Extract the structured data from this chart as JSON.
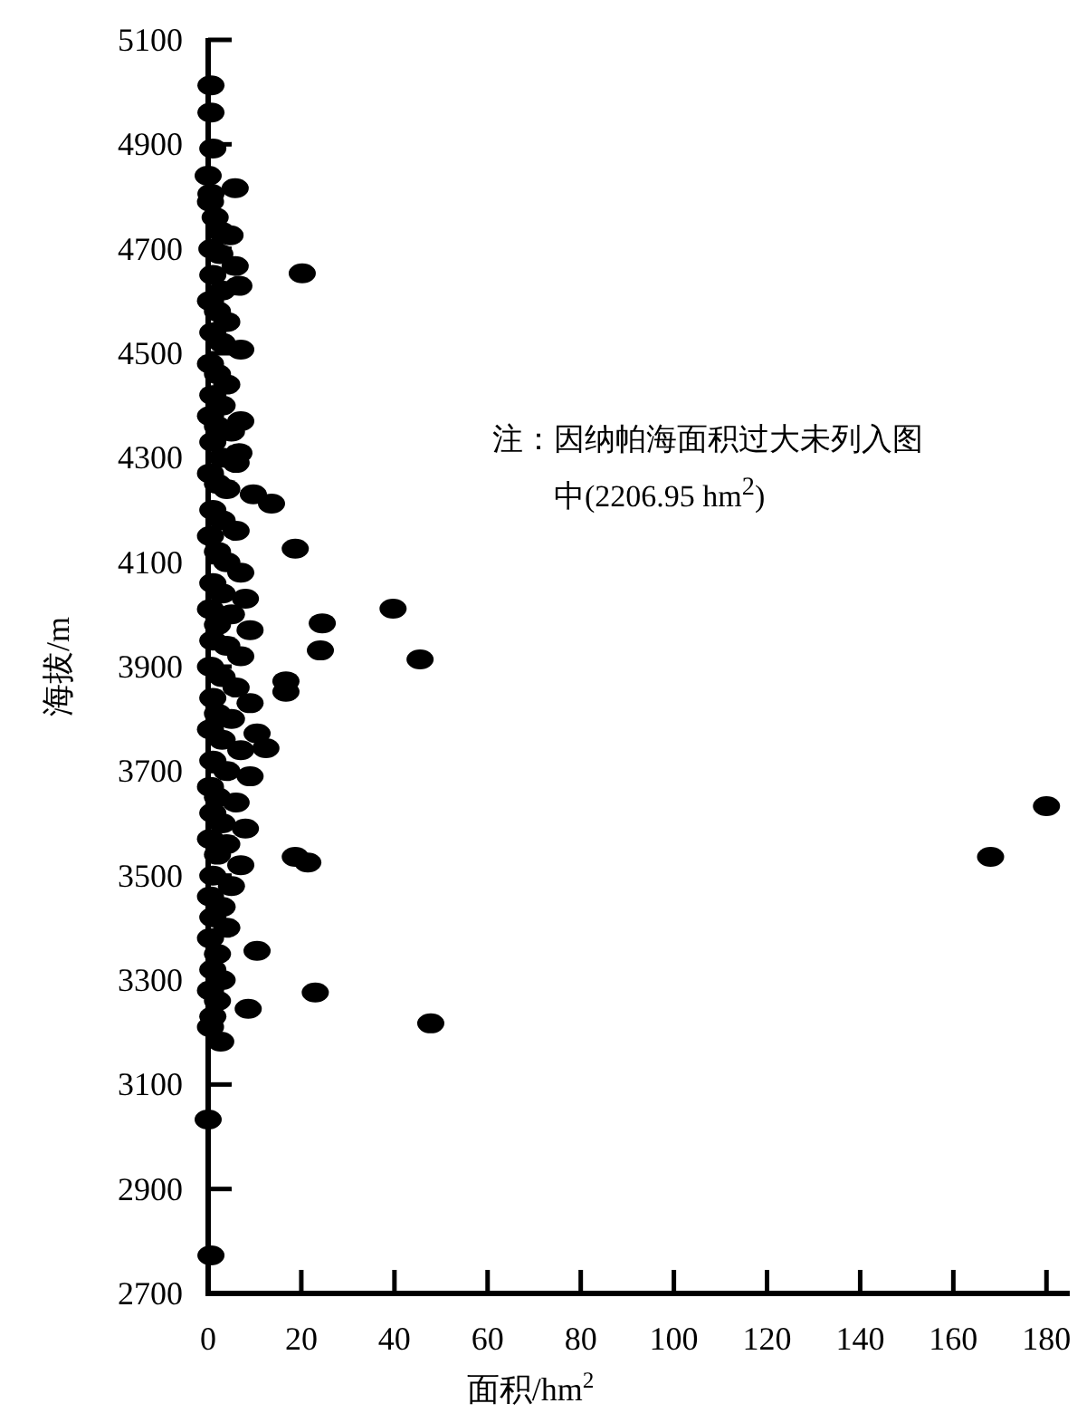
{
  "chart_data": {
    "type": "scatter",
    "xlabel": "面积/hm$^{2}$",
    "ylabel": "海拔/m",
    "annotations": [
      "注：因纳帕海面积过大未列入图中(2206.95 hm$^{2}$)"
    ],
    "xlim": [
      0,
      185
    ],
    "ylim": [
      2700,
      5100
    ],
    "xticks": [
      0,
      20,
      40,
      60,
      80,
      100,
      120,
      140,
      160,
      180
    ],
    "yticks": [
      2700,
      2900,
      3100,
      3300,
      3500,
      3700,
      3900,
      4100,
      4300,
      4500,
      4700,
      4900,
      5100
    ],
    "grid": false,
    "marker": "circle",
    "series": [
      {
        "color": "#000000",
        "x": [
          180,
          168,
          47.8,
          23,
          18.7,
          21.4,
          39.7,
          45.5,
          24.5,
          24.1,
          16.7,
          16.7,
          18.7,
          20.2,
          5.8,
          13.6,
          9.7,
          12.4,
          10.5,
          10.5,
          8.6,
          0,
          0.6,
          2.7,
          0.6,
          0.6,
          1,
          0,
          0.6,
          2.7,
          4.7,
          5.8,
          6.6,
          7,
          6.6,
          7,
          0.5,
          1.5,
          0.8,
          2.5,
          1,
          3,
          0.5,
          2,
          4,
          1,
          3,
          0.5,
          2,
          4,
          1,
          3,
          0.5,
          2,
          5,
          1,
          3,
          6,
          0.5,
          2,
          4,
          1,
          3,
          6,
          0.5,
          2,
          4,
          7,
          1,
          3,
          8,
          0.5,
          5,
          2,
          9,
          1,
          4,
          7,
          0.5,
          3,
          6,
          1,
          9,
          2,
          5,
          0.5,
          3,
          7,
          1,
          4,
          9,
          0.5,
          2,
          6,
          1,
          3,
          8,
          0.5,
          4,
          2,
          7,
          1,
          5,
          0.5,
          3,
          1,
          4,
          0.5,
          2,
          1,
          3,
          0.5,
          2,
          1,
          0.5
        ],
        "values": [
          3633,
          3536,
          3217,
          3276,
          3536,
          3525,
          4011,
          3914,
          3983,
          3931,
          3872,
          3852,
          4126,
          4653,
          4816,
          4212,
          4230,
          3744,
          3772,
          3356,
          3245,
          3033,
          2773,
          3182,
          5013,
          4961,
          4892,
          4840,
          4805,
          4733,
          4726,
          4667,
          4629,
          4507,
          4309,
          4370,
          4790,
          4760,
          4700,
          4690,
          4650,
          4620,
          4600,
          4580,
          4560,
          4540,
          4520,
          4480,
          4460,
          4440,
          4420,
          4400,
          4380,
          4360,
          4350,
          4330,
          4300,
          4290,
          4270,
          4250,
          4240,
          4200,
          4180,
          4160,
          4150,
          4120,
          4100,
          4080,
          4060,
          4040,
          4030,
          4010,
          4000,
          3980,
          3970,
          3950,
          3940,
          3920,
          3900,
          3880,
          3860,
          3840,
          3830,
          3810,
          3800,
          3780,
          3760,
          3740,
          3720,
          3700,
          3690,
          3670,
          3650,
          3640,
          3620,
          3600,
          3590,
          3570,
          3560,
          3540,
          3520,
          3500,
          3480,
          3460,
          3440,
          3420,
          3400,
          3380,
          3350,
          3320,
          3300,
          3280,
          3260,
          3230,
          3210
        ]
      }
    ]
  }
}
